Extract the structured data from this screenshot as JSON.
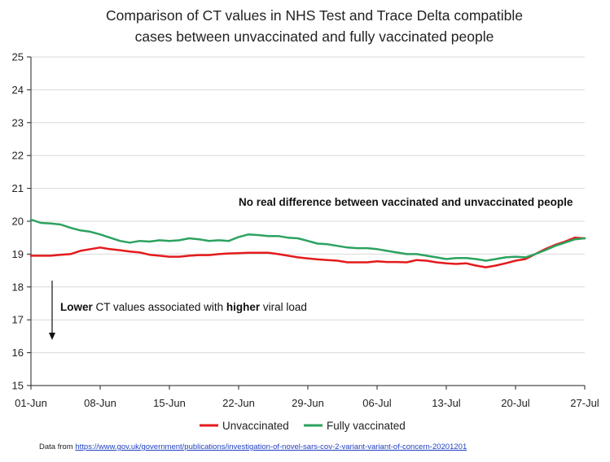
{
  "chart_data": {
    "type": "line",
    "title": [
      "Comparison of CT values in NHS Test and Trace Delta compatible",
      "cases between unvaccinated and fully vaccinated people"
    ],
    "xlabel": "",
    "ylabel": "",
    "xlim": [
      0,
      56
    ],
    "ylim": [
      15,
      25
    ],
    "yticks": [
      15,
      16,
      17,
      18,
      19,
      20,
      21,
      22,
      23,
      24,
      25
    ],
    "xticks": [
      {
        "day": 0,
        "label": "01-Jun"
      },
      {
        "day": 7,
        "label": "08-Jun"
      },
      {
        "day": 14,
        "label": "15-Jun"
      },
      {
        "day": 21,
        "label": "22-Jun"
      },
      {
        "day": 28,
        "label": "29-Jun"
      },
      {
        "day": 35,
        "label": "06-Jul"
      },
      {
        "day": 42,
        "label": "13-Jul"
      },
      {
        "day": 49,
        "label": "20-Jul"
      },
      {
        "day": 56,
        "label": "27-Jul"
      }
    ],
    "grid": "horizontal",
    "legend_position": "bottom",
    "series": [
      {
        "name": "Unvaccinated",
        "color": "#e41a1c",
        "x": [
          0,
          1,
          2,
          3,
          4,
          5,
          6,
          7,
          8,
          9,
          10,
          11,
          12,
          13,
          14,
          15,
          16,
          17,
          18,
          19,
          20,
          21,
          22,
          23,
          24,
          25,
          26,
          27,
          28,
          29,
          30,
          31,
          32,
          33,
          34,
          35,
          36,
          37,
          38,
          39,
          40,
          41,
          42,
          43,
          44,
          45,
          46,
          47,
          48,
          49,
          50,
          51,
          52,
          53,
          54,
          55,
          56
        ],
        "values": [
          18.95,
          18.95,
          18.95,
          18.98,
          19.0,
          19.1,
          19.15,
          19.2,
          19.15,
          19.12,
          19.08,
          19.05,
          18.98,
          18.95,
          18.92,
          18.92,
          18.95,
          18.97,
          18.97,
          19.0,
          19.02,
          19.03,
          19.04,
          19.04,
          19.04,
          19.0,
          18.95,
          18.9,
          18.87,
          18.84,
          18.82,
          18.8,
          18.75,
          18.75,
          18.75,
          18.78,
          18.76,
          18.76,
          18.75,
          18.82,
          18.8,
          18.75,
          18.72,
          18.7,
          18.72,
          18.65,
          18.6,
          18.65,
          18.72,
          18.8,
          18.85,
          19.0,
          19.15,
          19.28,
          19.38,
          19.5,
          19.48
        ]
      },
      {
        "name": "Fully vaccinated",
        "color": "#2ca25f",
        "x": [
          0,
          1,
          2,
          3,
          4,
          5,
          6,
          7,
          8,
          9,
          10,
          11,
          12,
          13,
          14,
          15,
          16,
          17,
          18,
          19,
          20,
          21,
          22,
          23,
          24,
          25,
          26,
          27,
          28,
          29,
          30,
          31,
          32,
          33,
          34,
          35,
          36,
          37,
          38,
          39,
          40,
          41,
          42,
          43,
          44,
          45,
          46,
          47,
          48,
          49,
          50,
          51,
          52,
          53,
          54,
          55,
          56
        ],
        "values": [
          20.05,
          19.95,
          19.93,
          19.9,
          19.8,
          19.72,
          19.68,
          19.6,
          19.5,
          19.4,
          19.35,
          19.4,
          19.38,
          19.42,
          19.4,
          19.42,
          19.48,
          19.45,
          19.4,
          19.42,
          19.4,
          19.52,
          19.6,
          19.58,
          19.55,
          19.55,
          19.5,
          19.48,
          19.4,
          19.32,
          19.3,
          19.25,
          19.2,
          19.18,
          19.18,
          19.15,
          19.1,
          19.05,
          19.0,
          19.0,
          18.95,
          18.9,
          18.85,
          18.88,
          18.88,
          18.85,
          18.8,
          18.85,
          18.9,
          18.92,
          18.9,
          19.0,
          19.12,
          19.25,
          19.35,
          19.45,
          19.48
        ]
      }
    ],
    "annotations": {
      "no_difference": "No real difference between vaccinated and unvaccinated people",
      "lower_bold": "Lower",
      "lower_rest_1": " CT values associated with ",
      "higher_bold": "higher",
      "lower_rest_2": " viral load"
    }
  },
  "source": {
    "prefix": "Data from ",
    "url_text": "https://www.gov.uk/government/publications/investigation-of-novel-sars-cov-2-variant-variant-of-concern-20201201"
  }
}
